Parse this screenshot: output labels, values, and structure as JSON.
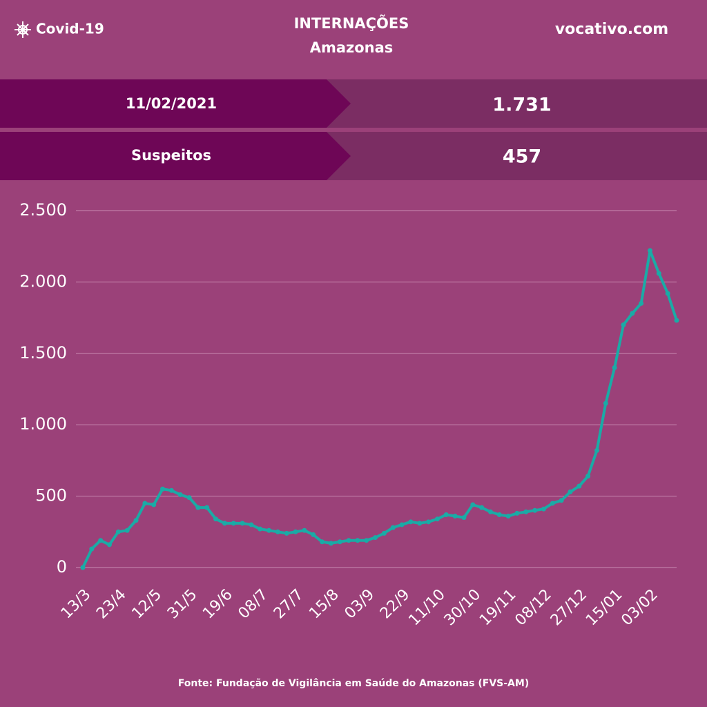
{
  "header": {
    "brand": "Covid-19",
    "title": "INTERNAÇÕES",
    "subtitle": "Amazonas",
    "site": "vocativo.com"
  },
  "summary": {
    "rows": [
      [
        "11/02/2021",
        "1.731"
      ],
      [
        "Suspeitos",
        "457"
      ]
    ]
  },
  "footer": {
    "source": "Fonte: Fundação de Vigilância em Saúde do Amazonas (FVS-AM)"
  },
  "chart_data": {
    "type": "line",
    "color": "#1aaba6",
    "grid": true,
    "categories": [
      "13/3",
      null,
      null,
      null,
      "23/4",
      null,
      null,
      null,
      "12/5",
      null,
      null,
      null,
      "31/5",
      null,
      null,
      null,
      "19/6",
      null,
      null,
      null,
      "08/7",
      null,
      null,
      null,
      "27/7",
      null,
      null,
      null,
      "15/8",
      null,
      null,
      null,
      "03/9",
      null,
      null,
      null,
      "22/9",
      null,
      null,
      null,
      "11/10",
      null,
      null,
      null,
      "30/10",
      null,
      null,
      null,
      "19/11",
      null,
      null,
      null,
      "08/12",
      null,
      null,
      null,
      "27/12",
      null,
      null,
      null,
      "15/01",
      null,
      null,
      null,
      "03/02",
      null,
      null,
      null
    ],
    "values": [
      0,
      130,
      190,
      160,
      250,
      260,
      330,
      450,
      440,
      550,
      540,
      510,
      490,
      420,
      420,
      340,
      310,
      310,
      310,
      300,
      270,
      260,
      250,
      240,
      250,
      260,
      230,
      180,
      170,
      180,
      190,
      190,
      190,
      210,
      240,
      280,
      300,
      320,
      310,
      320,
      340,
      370,
      360,
      350,
      440,
      420,
      390,
      370,
      360,
      380,
      390,
      400,
      410,
      450,
      470,
      530,
      570,
      640,
      820,
      1150,
      1400,
      1700,
      1780,
      1850,
      2220,
      2060,
      1920,
      1731
    ],
    "ylim": [
      0,
      2500
    ],
    "yticks": [
      0,
      500,
      {
        "value": 1000,
        "label": "1.000"
      },
      {
        "value": 1500,
        "label": "1.500"
      },
      {
        "value": 2000,
        "label": "2.000"
      },
      {
        "value": 2500,
        "label": "2.500"
      }
    ]
  }
}
